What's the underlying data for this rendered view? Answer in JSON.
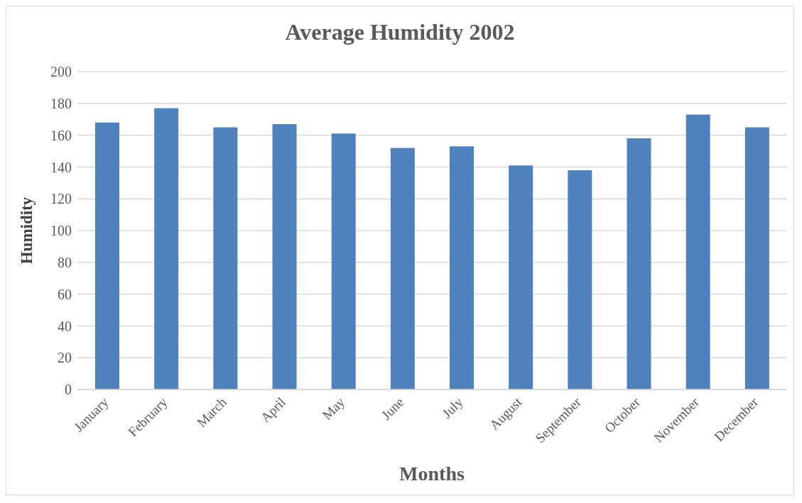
{
  "chart_data": {
    "type": "bar",
    "title": "Average Humidity 2002",
    "xlabel": "Months",
    "ylabel": "Humidity",
    "categories": [
      "January",
      "February",
      "March",
      "April",
      "May",
      "June",
      "July",
      "August",
      "September",
      "October",
      "November",
      "December"
    ],
    "values": [
      168,
      177,
      165,
      167,
      161,
      152,
      153,
      141,
      138,
      158,
      173,
      165
    ],
    "color": "#4f81bd",
    "ylim": [
      0,
      200
    ],
    "yticks": [
      0,
      20,
      40,
      60,
      80,
      100,
      120,
      140,
      160,
      180,
      200
    ],
    "grid": "y"
  }
}
